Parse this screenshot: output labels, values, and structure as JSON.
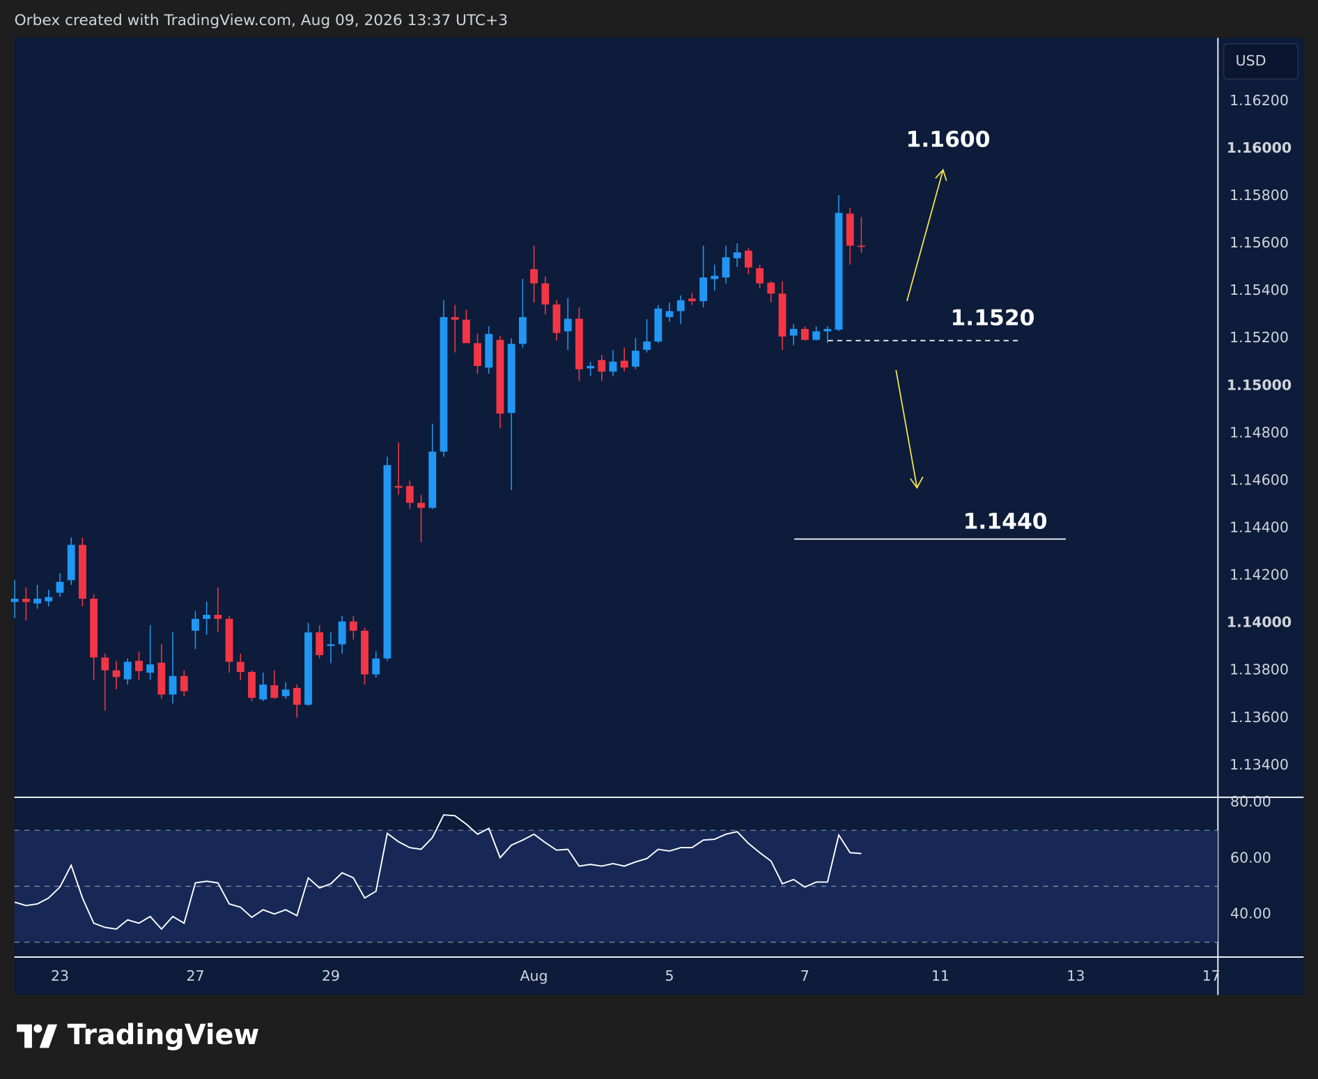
{
  "header": {
    "text": "Orbex created with TradingView.com, Aug 09, 2026 13:37 UTC+3"
  },
  "chart_data": [
    {
      "type": "candlestick",
      "currency": "USD",
      "categories": [
        null,
        null,
        null,
        null,
        "23",
        null,
        null,
        null,
        null,
        null,
        null,
        null,
        null,
        null,
        null,
        null,
        "27",
        null,
        null,
        null,
        null,
        null,
        null,
        null,
        null,
        null,
        null,
        null,
        "29",
        null,
        null,
        null,
        null,
        null,
        null,
        null,
        null,
        null,
        null,
        null,
        null,
        null,
        null,
        null,
        null,
        null,
        "Aug",
        null,
        null,
        null,
        null,
        null,
        null,
        null,
        null,
        null,
        null,
        null,
        "5",
        null,
        null,
        null,
        null,
        null,
        null,
        null,
        null,
        null,
        null,
        null,
        "7",
        null,
        null,
        null,
        null,
        null,
        null,
        null,
        null,
        null,
        null,
        null,
        "11",
        null,
        null,
        null,
        null,
        null,
        null,
        null,
        null,
        null,
        null,
        null,
        "13",
        null,
        null,
        null,
        null,
        null,
        null,
        null,
        null,
        null,
        null,
        null,
        "17"
      ],
      "open": [
        1.14088,
        1.14102,
        1.14082,
        1.14091,
        1.14127,
        1.1418,
        1.14329,
        1.14102,
        1.13854,
        1.138,
        1.13762,
        1.1384,
        1.1379,
        1.13832,
        1.13698,
        1.13776,
        1.13967,
        1.14017,
        1.14034,
        1.14017,
        1.13836,
        1.13793,
        1.13677,
        1.13737,
        1.13691,
        1.13726,
        1.13655,
        1.1396,
        1.13903,
        1.1391,
        1.14006,
        1.13967,
        1.13783,
        1.1385,
        1.14577,
        1.14577,
        1.14506,
        1.14485,
        1.14722,
        1.15289,
        1.15278,
        1.15179,
        1.15076,
        1.15193,
        1.14885,
        1.15176,
        1.15491,
        1.15431,
        1.15342,
        1.15229,
        1.15282,
        1.15073,
        1.15108,
        1.15059,
        1.15105,
        1.1508,
        1.15151,
        1.15186,
        1.15289,
        1.15314,
        1.15367,
        1.15356,
        1.15449,
        1.15456,
        1.15537,
        1.15569,
        1.15495,
        1.15434,
        1.15388,
        1.15211,
        1.15239,
        1.15193,
        1.15229,
        1.15236,
        1.15725,
        1.1559,
        null,
        null,
        null,
        null,
        null,
        null,
        null,
        null,
        null,
        null,
        null,
        null,
        null,
        null,
        null,
        null,
        null,
        null,
        null,
        null,
        null,
        null,
        null,
        null,
        null,
        null,
        null,
        null,
        null,
        null,
        null
      ],
      "high": [
        1.1418,
        1.1415,
        1.1416,
        1.1414,
        1.1421,
        1.1436,
        1.1436,
        1.1412,
        1.1387,
        1.1384,
        1.1385,
        1.1388,
        1.1399,
        1.1391,
        1.1396,
        1.138,
        1.1405,
        1.1409,
        1.1415,
        1.1403,
        1.1387,
        1.138,
        1.1379,
        1.138,
        1.1375,
        1.1374,
        1.14,
        1.1399,
        1.1396,
        1.1403,
        1.1403,
        1.1398,
        1.1388,
        1.147,
        1.1476,
        1.146,
        1.1454,
        1.1484,
        1.1536,
        1.1534,
        1.1532,
        1.1522,
        1.1525,
        1.1521,
        1.152,
        1.1545,
        1.1559,
        1.1546,
        1.1536,
        1.1537,
        1.1533,
        1.151,
        1.1513,
        1.1515,
        1.1516,
        1.152,
        1.1528,
        1.1534,
        1.1535,
        1.1538,
        1.1539,
        1.1559,
        1.1551,
        1.1559,
        1.156,
        1.1558,
        1.1551,
        1.1544,
        1.1544,
        1.1526,
        1.1525,
        1.1525,
        1.1525,
        1.15803,
        1.1575,
        1.1571,
        null,
        null,
        null,
        null,
        null,
        null,
        null,
        null,
        null,
        null,
        null,
        null,
        null,
        null,
        null,
        null,
        null,
        null,
        null,
        null,
        null,
        null,
        null,
        null,
        null,
        null,
        null,
        null,
        null,
        null,
        null
      ],
      "low": [
        1.1402,
        1.1401,
        1.1406,
        1.1407,
        1.1411,
        1.1416,
        1.1407,
        1.1376,
        1.1363,
        1.1372,
        1.1374,
        1.1376,
        1.1376,
        1.1368,
        1.1366,
        1.1369,
        1.1389,
        1.1395,
        1.1396,
        1.1379,
        1.1376,
        1.1367,
        1.1367,
        1.1368,
        1.1368,
        1.136,
        1.1365,
        1.1385,
        1.1383,
        1.1387,
        1.1393,
        1.1374,
        1.1377,
        1.1384,
        1.1454,
        1.1448,
        1.1434,
        1.1448,
        1.147,
        1.1514,
        1.1518,
        1.1505,
        1.1505,
        1.1482,
        1.1456,
        1.1516,
        1.1535,
        1.153,
        1.1519,
        1.1515,
        1.1502,
        1.1504,
        1.1502,
        1.1504,
        1.1506,
        1.1507,
        1.1514,
        1.1518,
        1.1527,
        1.1526,
        1.1534,
        1.1533,
        1.154,
        1.1543,
        1.155,
        1.1547,
        1.1541,
        1.1535,
        1.1515,
        1.1517,
        1.1519,
        1.1519,
        1.1518,
        1.1523,
        1.1551,
        1.1556,
        null,
        null,
        null,
        null,
        null,
        null,
        null,
        null,
        null,
        null,
        null,
        null,
        null,
        null,
        null,
        null,
        null,
        null,
        null,
        null,
        null,
        null,
        null,
        null,
        null,
        null,
        null,
        null,
        null,
        null,
        null
      ],
      "close": [
        1.14102,
        1.14088,
        1.14102,
        1.14109,
        1.14173,
        1.14329,
        1.14102,
        1.13854,
        1.138,
        1.13772,
        1.13836,
        1.13797,
        1.13825,
        1.13698,
        1.13776,
        1.13712,
        1.14017,
        1.14034,
        1.14017,
        1.13836,
        1.13793,
        1.13684,
        1.1374,
        1.13684,
        1.13719,
        1.13655,
        1.1396,
        1.13864,
        1.1391,
        1.14006,
        1.13967,
        1.13783,
        1.1385,
        1.14665,
        1.1457,
        1.14506,
        1.14485,
        1.14722,
        1.15289,
        1.15278,
        1.15179,
        1.15083,
        1.15218,
        1.14882,
        1.15176,
        1.15289,
        1.15431,
        1.15342,
        1.15222,
        1.15282,
        1.15069,
        1.15083,
        1.15059,
        1.15101,
        1.15076,
        1.15147,
        1.15186,
        1.15325,
        1.15314,
        1.1536,
        1.15356,
        1.15456,
        1.15463,
        1.15541,
        1.15562,
        1.15498,
        1.15431,
        1.15388,
        1.15207,
        1.15239,
        1.15193,
        1.15229,
        1.15239,
        1.15728,
        1.1559,
        1.15587,
        null,
        null,
        null,
        null,
        null,
        null,
        null,
        null,
        null,
        null,
        null,
        null,
        null,
        null,
        null,
        null,
        null,
        null,
        null,
        null,
        null,
        null,
        null,
        null,
        null,
        null,
        null,
        null,
        null,
        null,
        null
      ],
      "up_color": "#2196f3",
      "down_color": "#f23645",
      "ylim": [
        1.13265,
        1.16466
      ],
      "yticks": [
        {
          "value": 1.162,
          "label": "1.16200"
        },
        {
          "value": 1.16,
          "label": "1.16000"
        },
        {
          "value": 1.158,
          "label": "1.15800"
        },
        {
          "value": 1.156,
          "label": "1.15600"
        },
        {
          "value": 1.154,
          "label": "1.15400"
        },
        {
          "value": 1.152,
          "label": "1.15200"
        },
        {
          "value": 1.15,
          "label": "1.15000"
        },
        {
          "value": 1.148,
          "label": "1.14800"
        },
        {
          "value": 1.146,
          "label": "1.14600"
        },
        {
          "value": 1.144,
          "label": "1.14400"
        },
        {
          "value": 1.142,
          "label": "1.14200"
        },
        {
          "value": 1.14,
          "label": "1.14000"
        },
        {
          "value": 1.138,
          "label": "1.13800"
        },
        {
          "value": 1.136,
          "label": "1.13600"
        },
        {
          "value": 1.134,
          "label": "1.13400"
        }
      ],
      "annotations": [
        "1.1600",
        "1.1520",
        "1.1440"
      ]
    },
    {
      "type": "line",
      "color": "#ffffff",
      "values": [
        44.3,
        43.1,
        43.7,
        45.8,
        49.7,
        57.5,
        45.8,
        36.8,
        35.3,
        34.7,
        38.0,
        36.8,
        39.2,
        34.7,
        39.2,
        36.8,
        51.2,
        51.8,
        51.2,
        43.7,
        42.5,
        38.9,
        41.6,
        40.1,
        41.6,
        39.5,
        53.0,
        49.4,
        50.9,
        54.8,
        53.0,
        45.8,
        48.2,
        68.9,
        65.9,
        63.8,
        63.2,
        67.4,
        75.5,
        75.2,
        72.2,
        68.6,
        70.7,
        60.2,
        64.7,
        66.5,
        68.6,
        65.6,
        62.9,
        63.2,
        57.2,
        57.8,
        57.2,
        58.1,
        57.2,
        58.7,
        59.9,
        63.2,
        62.6,
        63.8,
        63.8,
        66.5,
        66.8,
        68.6,
        69.5,
        65.3,
        62.0,
        59.0,
        50.9,
        52.4,
        49.7,
        51.5,
        51.5,
        68.3,
        62.0,
        61.7,
        null,
        null,
        null,
        null,
        null,
        null,
        null,
        null,
        null,
        null,
        null,
        null,
        null,
        null,
        null,
        null,
        null,
        null,
        null,
        null,
        null,
        null,
        null,
        null,
        null,
        null,
        null,
        null,
        null,
        null,
        null
      ],
      "ylim": [
        24.7,
        81.8
      ],
      "yticks": [
        {
          "value": 40,
          "label": "40.00"
        },
        {
          "value": 60,
          "label": "60.00"
        },
        {
          "value": 80,
          "label": "80.00"
        }
      ],
      "levels": [
        70,
        50,
        30
      ]
    }
  ],
  "footer": {
    "logo": "TradingView"
  }
}
